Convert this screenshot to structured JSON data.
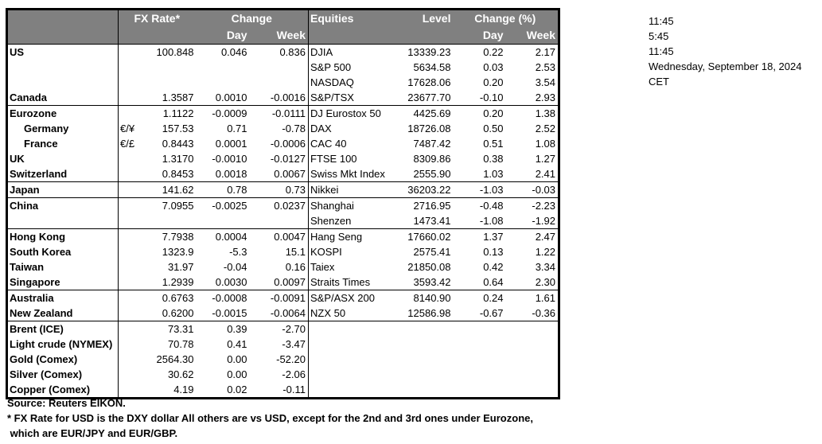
{
  "header": {
    "fx_rate": "FX Rate*",
    "change": "Change",
    "day": "Day",
    "week": "Week",
    "equities": "Equities",
    "level": "Level",
    "change_pct": "Change (%)",
    "eq_day": "Day",
    "eq_week": "Week"
  },
  "fx_rows": [
    {
      "name": "US",
      "sym": "",
      "rate": "100.848",
      "day": "0.046",
      "week": "0.836"
    },
    {
      "name": "",
      "sym": "",
      "rate": "",
      "day": "",
      "week": ""
    },
    {
      "name": "",
      "sym": "",
      "rate": "",
      "day": "",
      "week": ""
    },
    {
      "name": "Canada",
      "sym": "",
      "rate": "1.3587",
      "day": "0.0010",
      "week": "-0.0016"
    },
    {
      "name": "Eurozone",
      "sym": "",
      "rate": "1.1122",
      "day": "-0.0009",
      "week": "-0.0111"
    },
    {
      "name": "Germany",
      "sym": "€/¥",
      "rate": "157.53",
      "day": "0.71",
      "week": "-0.78"
    },
    {
      "name": "France",
      "sym": "€/£",
      "rate": "0.8443",
      "day": "0.0001",
      "week": "-0.0006"
    },
    {
      "name": "UK",
      "sym": "",
      "rate": "1.3170",
      "day": "-0.0010",
      "week": "-0.0127"
    },
    {
      "name": "Switzerland",
      "sym": "",
      "rate": "0.8453",
      "day": "0.0018",
      "week": "0.0067"
    },
    {
      "name": "Japan",
      "sym": "",
      "rate": "141.62",
      "day": "0.78",
      "week": "0.73"
    },
    {
      "name": "China",
      "sym": "",
      "rate": "7.0955",
      "day": "-0.0025",
      "week": "0.0237"
    },
    {
      "name": "",
      "sym": "",
      "rate": "",
      "day": "",
      "week": ""
    },
    {
      "name": "Hong Kong",
      "sym": "",
      "rate": "7.7938",
      "day": "0.0004",
      "week": "0.0047"
    },
    {
      "name": "South Korea",
      "sym": "",
      "rate": "1323.9",
      "day": "-5.3",
      "week": "15.1"
    },
    {
      "name": "Taiwan",
      "sym": "",
      "rate": "31.97",
      "day": "-0.04",
      "week": "0.16"
    },
    {
      "name": "Singapore",
      "sym": "",
      "rate": "1.2939",
      "day": "0.0030",
      "week": "0.0097"
    },
    {
      "name": "Australia",
      "sym": "",
      "rate": "0.6763",
      "day": "-0.0008",
      "week": "-0.0091"
    },
    {
      "name": "New Zealand",
      "sym": "",
      "rate": "0.6200",
      "day": "-0.0015",
      "week": "-0.0064"
    },
    {
      "name": "Brent (ICE)",
      "sym": "",
      "rate": "73.31",
      "day": "0.39",
      "week": "-2.70"
    },
    {
      "name": "Light crude (NYMEX)",
      "sym": "",
      "rate": "70.78",
      "day": "0.41",
      "week": "-3.47"
    },
    {
      "name": "Gold (Comex)",
      "sym": "",
      "rate": "2564.30",
      "day": "0.00",
      "week": "-52.20"
    },
    {
      "name": "Silver (Comex)",
      "sym": "",
      "rate": "30.62",
      "day": "0.00",
      "week": "-2.06"
    },
    {
      "name": "Copper (Comex)",
      "sym": "",
      "rate": "4.19",
      "day": "0.02",
      "week": "-0.11"
    }
  ],
  "equity_rows": [
    {
      "name": "DJIA",
      "level": "13339.23",
      "day": "0.22",
      "week": "2.17"
    },
    {
      "name": "S&P 500",
      "level": "5634.58",
      "day": "0.03",
      "week": "2.53"
    },
    {
      "name": "NASDAQ",
      "level": "17628.06",
      "day": "0.20",
      "week": "3.54"
    },
    {
      "name": "S&P/TSX",
      "level": "23677.70",
      "day": "-0.10",
      "week": "2.93"
    },
    {
      "name": "DJ Eurostox 50",
      "level": "4425.69",
      "day": "0.20",
      "week": "1.38"
    },
    {
      "name": "DAX",
      "level": "18726.08",
      "day": "0.50",
      "week": "2.52"
    },
    {
      "name": "CAC 40",
      "level": "7487.42",
      "day": "0.51",
      "week": "1.08"
    },
    {
      "name": "FTSE 100",
      "level": "8309.86",
      "day": "0.38",
      "week": "1.27"
    },
    {
      "name": "Swiss Mkt Index",
      "level": "2555.90",
      "day": "1.03",
      "week": "2.41"
    },
    {
      "name": "Nikkei",
      "level": "36203.22",
      "day": "-1.03",
      "week": "-0.03"
    },
    {
      "name": "Shanghai",
      "level": "2716.95",
      "day": "-0.48",
      "week": "-2.23"
    },
    {
      "name": "Shenzen",
      "level": "1473.41",
      "day": "-1.08",
      "week": "-1.92"
    },
    {
      "name": "Hang Seng",
      "level": "17660.02",
      "day": "1.37",
      "week": "2.47"
    },
    {
      "name": "KOSPI",
      "level": "2575.41",
      "day": "0.13",
      "week": "1.22"
    },
    {
      "name": "Taiex",
      "level": "21850.08",
      "day": "0.42",
      "week": "3.34"
    },
    {
      "name": "Straits Times",
      "level": "3593.42",
      "day": "0.64",
      "week": "2.30"
    },
    {
      "name": "S&P/ASX  200",
      "level": "8140.90",
      "day": "0.24",
      "week": "1.61"
    },
    {
      "name": "NZX 50",
      "level": "12586.98",
      "day": "-0.67",
      "week": "-0.36"
    }
  ],
  "times": [
    "11:45",
    "5:45",
    "11:45",
    "Wednesday, September 18, 2024",
    "CET"
  ],
  "footer": {
    "source": "Source:  Reuters EIKON.",
    "note_line1": "* FX Rate for USD is the DXY dollar  All others are vs USD, except for the 2nd and 3rd ones under Eurozone,",
    "note_line2": " which are EUR/JPY and EUR/GBP."
  }
}
